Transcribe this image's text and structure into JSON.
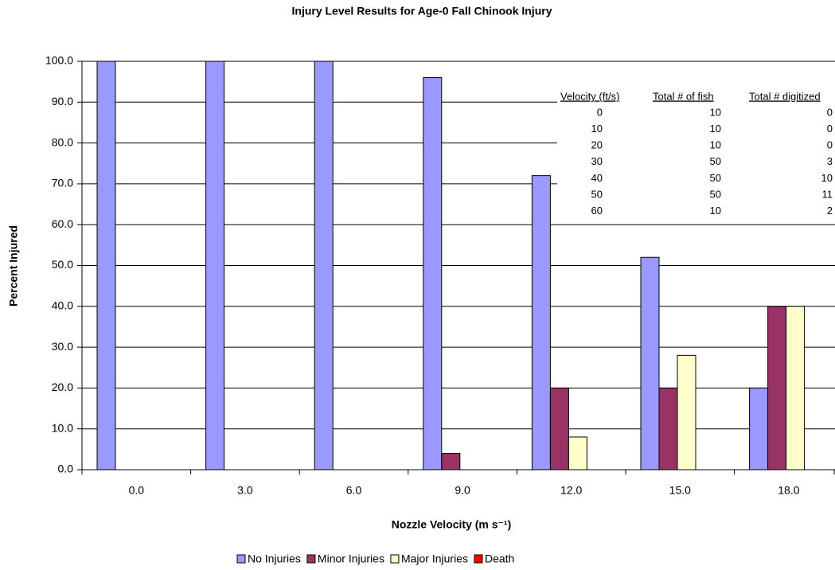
{
  "chart_data": {
    "type": "bar",
    "title": "Injury Level Results for Age-0 Fall Chinook Injury",
    "x_label": "Nozzle Velocity (m s⁻¹)",
    "y_label": "Percent Injured",
    "categories": [
      "0.0",
      "3.0",
      "6.0",
      "9.0",
      "12.0",
      "15.0",
      "18.0"
    ],
    "series": [
      {
        "name": "No Injuries",
        "color": "#9999ff",
        "values": [
          100,
          100,
          100,
          96,
          72,
          52,
          20
        ]
      },
      {
        "name": "Minor Injuries",
        "color": "#993366",
        "values": [
          0,
          0,
          0,
          4,
          20,
          20,
          40
        ]
      },
      {
        "name": "Major Injuries",
        "color": "#ffffcc",
        "values": [
          0,
          0,
          0,
          0,
          8,
          28,
          40
        ]
      },
      {
        "name": "Death",
        "color": "#ff0000",
        "values": [
          0,
          0,
          0,
          0,
          0,
          0,
          0
        ]
      }
    ],
    "ylim": [
      0,
      100
    ],
    "yticks": [
      {
        "value": 0,
        "label": "0.0"
      },
      {
        "value": 10,
        "label": "10.0"
      },
      {
        "value": 20,
        "label": "20.0"
      },
      {
        "value": 30,
        "label": "30.0"
      },
      {
        "value": 40,
        "label": "40.0"
      },
      {
        "value": 50,
        "label": "50.0"
      },
      {
        "value": 60,
        "label": "60.0"
      },
      {
        "value": 70,
        "label": "70.0"
      },
      {
        "value": 80,
        "label": "80.0"
      },
      {
        "value": 90,
        "label": "90.0"
      },
      {
        "value": 100,
        "label": "100.0"
      }
    ],
    "grid": true,
    "legend": "bottom",
    "inset_table": {
      "columns": [
        "Velocity (ft/s)",
        "Total # of fish",
        "Total # digitized"
      ],
      "rows": [
        [
          0,
          10,
          0
        ],
        [
          10,
          10,
          0
        ],
        [
          20,
          10,
          0
        ],
        [
          30,
          50,
          3
        ],
        [
          40,
          50,
          10
        ],
        [
          50,
          50,
          11
        ],
        [
          60,
          10,
          2
        ]
      ]
    }
  }
}
